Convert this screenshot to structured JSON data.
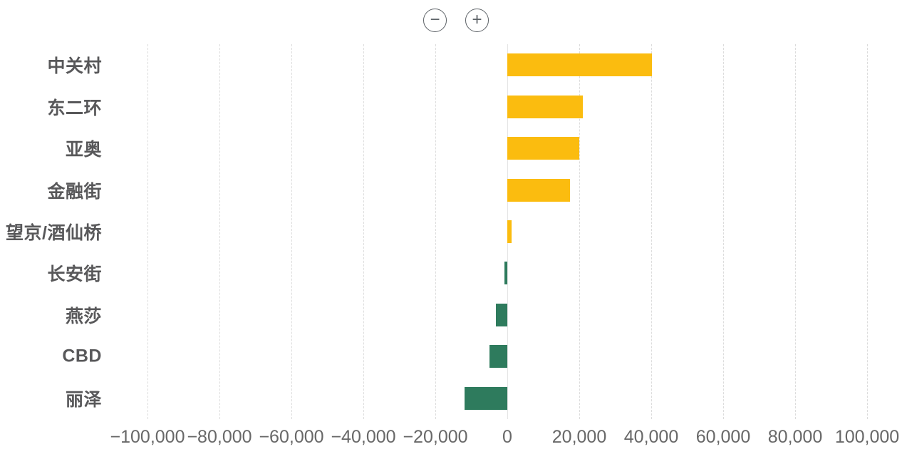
{
  "toolbar": {
    "zoom_out_label": "−",
    "zoom_in_label": "+"
  },
  "chart_data": {
    "type": "bar",
    "orientation": "horizontal",
    "title": "",
    "xlabel": "",
    "ylabel": "",
    "categories": [
      "中关村",
      "东二环",
      "亚奥",
      "金融街",
      "望京/酒仙桥",
      "长安街",
      "燕莎",
      "CBD",
      "丽泽"
    ],
    "values": [
      40200,
      21000,
      20000,
      17400,
      1100,
      -800,
      -3100,
      -5000,
      -11900
    ],
    "xlim": [
      -100000,
      100000
    ],
    "x_ticks": [
      -100000,
      -80000,
      -60000,
      -40000,
      -20000,
      0,
      20000,
      40000,
      60000,
      80000,
      100000
    ],
    "x_tick_labels": [
      "−100,000",
      "−80,000",
      "−60,000",
      "−40,000",
      "−20,000",
      "0",
      "20,000",
      "40,000",
      "60,000",
      "80,000",
      "100,000"
    ],
    "grid": true,
    "legend": false,
    "positive_color": "#FBBC0F",
    "negative_color": "#2E7B5D",
    "gridline_color": "#dcdcdc",
    "category_label_color": "#58585a",
    "tick_label_color": "#686868"
  }
}
